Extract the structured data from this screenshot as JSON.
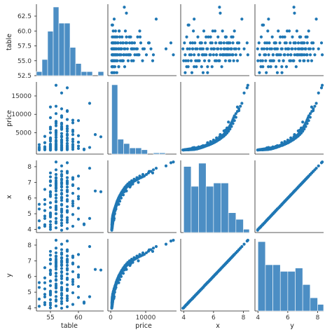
{
  "chart_data": {
    "type": "pairplot",
    "variables": [
      "table",
      "price",
      "x",
      "y"
    ],
    "axis_ranges": {
      "table": [
        52.5,
        64.5
      ],
      "price": [
        -800,
        18800
      ],
      "x": [
        3.8,
        8.4
      ],
      "y": [
        3.8,
        8.4
      ]
    },
    "ticks": {
      "table": [
        52.5,
        55.0,
        57.5,
        60.0,
        62.5
      ],
      "table_bottom": [
        55,
        60
      ],
      "price": [
        5000,
        10000,
        15000
      ],
      "price_bottom": [
        0,
        10000
      ],
      "x": [
        4,
        5,
        6,
        7,
        8
      ],
      "x_bottom": [
        4,
        6,
        8
      ],
      "y": [
        4,
        5,
        6,
        7,
        8
      ],
      "y_bottom": [
        4,
        6,
        8
      ]
    },
    "tick_labels": {
      "table": [
        "52.5",
        "55.0",
        "57.5",
        "60.0",
        "62.5"
      ],
      "table_bottom": [
        "55",
        "60"
      ],
      "price": [
        "5000",
        "10000",
        "15000"
      ],
      "price_bottom": [
        "0",
        "10000"
      ],
      "x": [
        "4",
        "5",
        "6",
        "7",
        "8"
      ],
      "x_bottom": [
        "4",
        "6",
        "8"
      ],
      "y": [
        "4",
        "5",
        "6",
        "7",
        "8"
      ],
      "y_bottom": [
        "4",
        "6",
        "8"
      ]
    },
    "histograms": {
      "table": {
        "edges": [
          52.5,
          53.5,
          54.5,
          55.5,
          56.5,
          57.5,
          58.5,
          59.5,
          60.5,
          61.5,
          62.5,
          63.5,
          64.5
        ],
        "counts": [
          1,
          4,
          11,
          17,
          13,
          13,
          7,
          3,
          1,
          1,
          0,
          1
        ]
      },
      "price": {
        "edges": [
          300,
          2000,
          3700,
          5400,
          7100,
          8800,
          10500,
          12200,
          13900,
          15600,
          17300,
          18800
        ],
        "counts": [
          112,
          24,
          17,
          10,
          10,
          7,
          0,
          2,
          2,
          0,
          0
        ]
      },
      "x": {
        "edges": [
          4.0,
          4.5,
          5.0,
          5.5,
          6.0,
          6.5,
          7.0,
          7.5,
          8.0,
          8.4
        ],
        "counts": [
          20,
          14,
          21,
          14,
          15,
          15,
          6,
          4,
          1
        ]
      },
      "y": {
        "edges": [
          4.0,
          4.5,
          5.0,
          5.5,
          6.0,
          6.5,
          7.0,
          7.5,
          8.0,
          8.4
        ],
        "counts": [
          21,
          14,
          14,
          12,
          12,
          13,
          8,
          4,
          2
        ]
      }
    },
    "records": [
      [
        57,
        326,
        3.95,
        3.98
      ],
      [
        58,
        400,
        4.05,
        4.07
      ],
      [
        56,
        420,
        4.1,
        4.12
      ],
      [
        55,
        440,
        4.15,
        4.18
      ],
      [
        59,
        470,
        4.2,
        4.22
      ],
      [
        57,
        500,
        4.25,
        4.27
      ],
      [
        54,
        530,
        4.3,
        4.33
      ],
      [
        61,
        560,
        4.35,
        4.37
      ],
      [
        56,
        590,
        4.4,
        4.43
      ],
      [
        58,
        620,
        4.45,
        4.47
      ],
      [
        55,
        650,
        4.5,
        4.52
      ],
      [
        53,
        680,
        4.55,
        4.56
      ],
      [
        57,
        700,
        4.6,
        4.62
      ],
      [
        60,
        730,
        4.65,
        4.66
      ],
      [
        56,
        760,
        4.7,
        4.72
      ],
      [
        58,
        800,
        4.75,
        4.76
      ],
      [
        55,
        830,
        4.8,
        4.82
      ],
      [
        54,
        870,
        4.85,
        4.86
      ],
      [
        57,
        900,
        4.9,
        4.92
      ],
      [
        59,
        950,
        4.95,
        4.96
      ],
      [
        56,
        980,
        5.0,
        5.02
      ],
      [
        55,
        1020,
        5.05,
        5.06
      ],
      [
        57,
        1080,
        5.1,
        5.12
      ],
      [
        58,
        1140,
        5.15,
        5.16
      ],
      [
        54,
        1200,
        5.2,
        5.21
      ],
      [
        56,
        1260,
        5.25,
        5.26
      ],
      [
        57,
        1320,
        5.3,
        5.31
      ],
      [
        60,
        1380,
        5.35,
        5.36
      ],
      [
        55,
        1450,
        5.4,
        5.42
      ],
      [
        58,
        1520,
        5.45,
        5.47
      ],
      [
        56,
        1600,
        5.5,
        5.52
      ],
      [
        57,
        1680,
        5.55,
        5.57
      ],
      [
        53,
        1760,
        5.6,
        5.61
      ],
      [
        59,
        1840,
        5.65,
        5.66
      ],
      [
        55,
        1920,
        5.7,
        5.71
      ],
      [
        56,
        2000,
        5.75,
        5.76
      ],
      [
        58,
        2100,
        5.8,
        5.81
      ],
      [
        57,
        2200,
        5.85,
        5.86
      ],
      [
        54,
        2300,
        5.9,
        5.91
      ],
      [
        60,
        2400,
        5.95,
        5.96
      ],
      [
        56,
        2500,
        6.0,
        6.01
      ],
      [
        57,
        2620,
        6.05,
        6.06
      ],
      [
        55,
        2740,
        6.1,
        6.12
      ],
      [
        58,
        2860,
        6.15,
        6.16
      ],
      [
        56,
        2980,
        6.2,
        6.21
      ],
      [
        57,
        3100,
        6.25,
        6.26
      ],
      [
        59,
        3250,
        6.3,
        6.31
      ],
      [
        55,
        3400,
        6.35,
        6.36
      ],
      [
        58,
        3550,
        6.4,
        6.41
      ],
      [
        56,
        3700,
        6.45,
        6.46
      ],
      [
        57,
        3850,
        6.5,
        6.51
      ],
      [
        54,
        4000,
        6.55,
        6.56
      ],
      [
        60,
        4200,
        6.6,
        6.61
      ],
      [
        56,
        4400,
        6.65,
        6.66
      ],
      [
        58,
        4600,
        6.7,
        6.71
      ],
      [
        57,
        4800,
        6.75,
        6.76
      ],
      [
        55,
        5000,
        6.8,
        6.81
      ],
      [
        59,
        5300,
        6.85,
        6.86
      ],
      [
        56,
        5600,
        6.9,
        6.91
      ],
      [
        57,
        5900,
        6.95,
        6.96
      ],
      [
        58,
        6200,
        7.0,
        7.01
      ],
      [
        55,
        6500,
        7.05,
        7.06
      ],
      [
        56,
        6900,
        7.1,
        7.11
      ],
      [
        57,
        7300,
        7.15,
        7.16
      ],
      [
        59,
        7700,
        7.2,
        7.21
      ],
      [
        56,
        8100,
        7.25,
        7.26
      ],
      [
        58,
        8600,
        7.3,
        7.31
      ],
      [
        55,
        9100,
        7.35,
        7.36
      ],
      [
        57,
        9600,
        7.4,
        7.41
      ],
      [
        56,
        10200,
        7.5,
        7.51
      ],
      [
        58,
        10800,
        7.6,
        7.61
      ],
      [
        57,
        11500,
        7.7,
        7.71
      ],
      [
        56,
        12200,
        7.8,
        7.81
      ],
      [
        62,
        13000,
        7.9,
        7.91
      ],
      [
        57,
        15800,
        8.05,
        8.06
      ],
      [
        58,
        17200,
        8.25,
        8.26
      ],
      [
        56,
        17900,
        8.3,
        8.31
      ],
      [
        63,
        4500,
        6.45,
        6.45
      ],
      [
        64,
        3900,
        6.4,
        6.41
      ],
      [
        62,
        1000,
        4.7,
        4.71
      ],
      [
        55,
        350,
        4.3,
        4.31
      ],
      [
        57,
        380,
        4.4,
        4.41
      ],
      [
        56,
        410,
        4.5,
        4.51
      ],
      [
        58,
        430,
        4.6,
        4.61
      ],
      [
        54,
        460,
        4.7,
        4.7
      ],
      [
        57,
        540,
        4.8,
        4.81
      ],
      [
        55,
        600,
        4.9,
        4.9
      ],
      [
        56,
        720,
        5.0,
        5.01
      ],
      [
        58,
        840,
        5.1,
        5.1
      ],
      [
        57,
        960,
        5.2,
        5.21
      ],
      [
        53,
        1100,
        5.3,
        5.3
      ],
      [
        56,
        1250,
        5.4,
        5.41
      ],
      [
        59,
        1400,
        5.5,
        5.5
      ],
      [
        57,
        1550,
        5.6,
        5.62
      ],
      [
        55,
        1700,
        5.7,
        5.7
      ],
      [
        56,
        1850,
        5.8,
        5.8
      ],
      [
        58,
        2050,
        5.9,
        5.9
      ],
      [
        57,
        2250,
        6.0,
        6.01
      ],
      [
        60,
        2450,
        6.1,
        6.1
      ],
      [
        56,
        2700,
        6.2,
        6.2
      ],
      [
        57,
        2950,
        6.3,
        6.31
      ],
      [
        55,
        3200,
        6.4,
        6.4
      ],
      [
        58,
        3500,
        6.5,
        6.51
      ],
      [
        56,
        3800,
        6.6,
        6.6
      ],
      [
        57,
        4100,
        6.7,
        6.7
      ],
      [
        59,
        4500,
        6.8,
        6.8
      ],
      [
        56,
        4900,
        6.9,
        6.9
      ],
      [
        58,
        5400,
        7.0,
        7.0
      ],
      [
        55,
        6000,
        7.1,
        7.1
      ],
      [
        57,
        6700,
        7.2,
        7.2
      ],
      [
        56,
        7500,
        7.3,
        7.3
      ],
      [
        60,
        8300,
        7.4,
        7.4
      ],
      [
        57,
        9200,
        7.5,
        7.5
      ],
      [
        58,
        11000,
        7.7,
        7.7
      ],
      [
        55,
        300,
        4.0,
        4.0
      ],
      [
        53,
        330,
        4.1,
        4.1
      ],
      [
        54,
        360,
        4.2,
        4.2
      ],
      [
        61,
        390,
        4.3,
        4.3
      ],
      [
        57,
        900,
        4.6,
        4.6
      ],
      [
        55,
        1150,
        5.0,
        5.0
      ],
      [
        58,
        1300,
        5.2,
        5.2
      ],
      [
        56,
        1500,
        5.3,
        5.3
      ],
      [
        54,
        2300,
        5.6,
        5.6
      ],
      [
        59,
        2600,
        5.8,
        5.8
      ],
      [
        57,
        3000,
        6.0,
        6.0
      ],
      [
        55,
        3600,
        6.2,
        6.2
      ],
      [
        58,
        4300,
        6.5,
        6.5
      ],
      [
        56,
        5200,
        6.8,
        6.8
      ],
      [
        57,
        6100,
        7.0,
        7.0
      ],
      [
        58,
        6800,
        7.1,
        7.1
      ],
      [
        57,
        7600,
        7.2,
        7.2
      ],
      [
        56,
        7900,
        7.0,
        7.0
      ],
      [
        59,
        8400,
        7.3,
        7.3
      ],
      [
        55,
        12000,
        7.6,
        7.6
      ],
      [
        58,
        6000,
        6.9,
        6.9
      ],
      [
        56,
        5500,
        6.7,
        6.7
      ],
      [
        57,
        6300,
        6.9,
        6.9
      ],
      [
        59,
        5700,
        6.8,
        6.8
      ]
    ]
  }
}
